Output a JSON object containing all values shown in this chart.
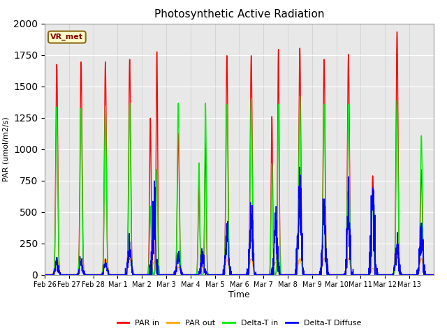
{
  "title": "Photosynthetic Active Radiation",
  "ylabel": "PAR (umol/m2/s)",
  "xlabel": "Time",
  "annotation": "VR_met",
  "ylim": [
    0,
    2000
  ],
  "background_color": "#e8e8e8",
  "fig_background": "#ffffff",
  "grid_color": "#ffffff",
  "series": {
    "PAR in": {
      "color": "#ff0000",
      "lw": 1.0
    },
    "PAR out": {
      "color": "#ffa500",
      "lw": 1.0
    },
    "Delta-T in": {
      "color": "#00ee00",
      "lw": 1.0
    },
    "Delta-T Diffuse": {
      "color": "#0000ff",
      "lw": 1.0
    }
  },
  "tick_labels": [
    "Feb 26",
    "Feb 27",
    "Feb 28",
    "Mar 1",
    "Mar 2",
    "Mar 3",
    "Mar 4",
    "Mar 5",
    "Mar 6",
    "Mar 7",
    "Mar 8",
    "Mar 9",
    "Mar 10",
    "Mar 11",
    "Mar 12",
    "Mar 13"
  ],
  "days": 16,
  "points_per_day": 144,
  "par_in_peaks": [
    1680,
    1700,
    1700,
    1720,
    1780,
    1130,
    1050,
    1750,
    1750,
    1800,
    1810,
    1720,
    1760,
    790,
    1940,
    840
  ],
  "par_out_peaks": [
    130,
    130,
    130,
    130,
    100,
    60,
    60,
    120,
    130,
    100,
    130,
    130,
    130,
    50,
    120,
    130
  ],
  "delta_t_in_peaks": [
    1340,
    1330,
    1350,
    1370,
    840,
    1370,
    1370,
    1360,
    1410,
    1360,
    1430,
    1360,
    1360,
    650,
    1390,
    1110
  ],
  "delta_t_diff_peaks": [
    100,
    90,
    90,
    230,
    530,
    160,
    160,
    300,
    420,
    410,
    650,
    460,
    530,
    600,
    250,
    340
  ],
  "cloudy_days": [
    4,
    6,
    9
  ],
  "overcast_days": [
    12
  ]
}
